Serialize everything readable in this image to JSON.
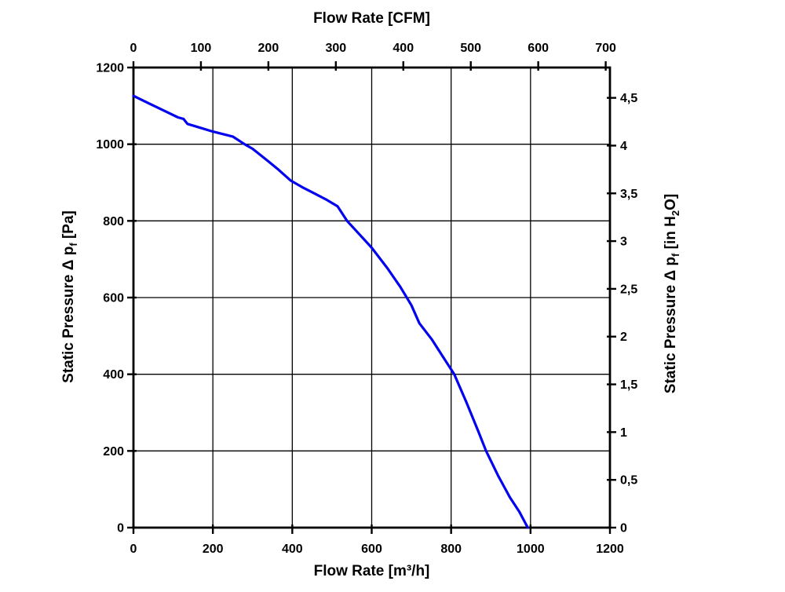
{
  "chart_data": {
    "type": "line",
    "title_top": "Flow Rate [CFM]",
    "xlabel_bottom": "Flow Rate [m³/h]",
    "ylabel_left_parts": [
      {
        "t": "Static Pressure Δ p"
      },
      {
        "s": "f"
      },
      {
        "t": " [Pa]"
      }
    ],
    "ylabel_right_parts": [
      {
        "t": "Static Pressure Δ p"
      },
      {
        "s": "f"
      },
      {
        "t": " [in H"
      },
      {
        "s": "2"
      },
      {
        "t": "O]"
      }
    ],
    "x_bottom_range": [
      0,
      1200
    ],
    "y_left_range": [
      0,
      1200
    ],
    "x_top_range_cfm": [
      0,
      700
    ],
    "y_right_range_inh2o": [
      0,
      4.5
    ],
    "cfm_to_m3h": 1.69901,
    "inh2o_to_pa": 249.089,
    "grid": true,
    "legend": "none",
    "x_bottom_ticks": [
      {
        "v": 0,
        "label": "0"
      },
      {
        "v": 200,
        "label": "200"
      },
      {
        "v": 400,
        "label": "400"
      },
      {
        "v": 600,
        "label": "600"
      },
      {
        "v": 800,
        "label": "800"
      },
      {
        "v": 1000,
        "label": "1000"
      },
      {
        "v": 1200,
        "label": "1200"
      }
    ],
    "x_top_ticks": [
      {
        "v": 0,
        "label": "0"
      },
      {
        "v": 100,
        "label": "100"
      },
      {
        "v": 200,
        "label": "200"
      },
      {
        "v": 300,
        "label": "300"
      },
      {
        "v": 400,
        "label": "400"
      },
      {
        "v": 500,
        "label": "500"
      },
      {
        "v": 600,
        "label": "600"
      },
      {
        "v": 700,
        "label": "700"
      }
    ],
    "y_left_ticks": [
      {
        "v": 0,
        "label": "0"
      },
      {
        "v": 200,
        "label": "200"
      },
      {
        "v": 400,
        "label": "400"
      },
      {
        "v": 600,
        "label": "600"
      },
      {
        "v": 800,
        "label": "800"
      },
      {
        "v": 1000,
        "label": "1000"
      },
      {
        "v": 1200,
        "label": "1200"
      }
    ],
    "y_right_ticks": [
      {
        "v": 0,
        "label": "0"
      },
      {
        "v": 0.5,
        "label": "0,5"
      },
      {
        "v": 1,
        "label": "1"
      },
      {
        "v": 1.5,
        "label": "1,5"
      },
      {
        "v": 2,
        "label": "2"
      },
      {
        "v": 2.5,
        "label": "2,5"
      },
      {
        "v": 3,
        "label": "3"
      },
      {
        "v": 3.5,
        "label": "3,5"
      },
      {
        "v": 4,
        "label": "4"
      },
      {
        "v": 4.5,
        "label": "4,5"
      }
    ],
    "series": [
      {
        "name": "static-pressure-vs-flow",
        "color": "#0202EE",
        "width": 3.2,
        "points_m3h_pa": [
          [
            0,
            1126
          ],
          [
            40,
            1106
          ],
          [
            80,
            1086
          ],
          [
            112,
            1070
          ],
          [
            126,
            1066
          ],
          [
            136,
            1053
          ],
          [
            168,
            1043
          ],
          [
            200,
            1033
          ],
          [
            250,
            1020
          ],
          [
            280,
            1000
          ],
          [
            300,
            988
          ],
          [
            340,
            955
          ],
          [
            366,
            933
          ],
          [
            395,
            906
          ],
          [
            425,
            888
          ],
          [
            455,
            872
          ],
          [
            485,
            856
          ],
          [
            514,
            838
          ],
          [
            538,
            800
          ],
          [
            570,
            764
          ],
          [
            600,
            730
          ],
          [
            640,
            676
          ],
          [
            672,
            628
          ],
          [
            700,
            580
          ],
          [
            720,
            533
          ],
          [
            752,
            490
          ],
          [
            780,
            445
          ],
          [
            808,
            400
          ],
          [
            838,
            328
          ],
          [
            868,
            252
          ],
          [
            888,
            200
          ],
          [
            918,
            136
          ],
          [
            948,
            79
          ],
          [
            972,
            41
          ],
          [
            993,
            0
          ]
        ]
      }
    ],
    "colors": {
      "axis": "#000000",
      "grid": "#000000",
      "background": "#ffffff",
      "curve": "#0202EE"
    }
  }
}
